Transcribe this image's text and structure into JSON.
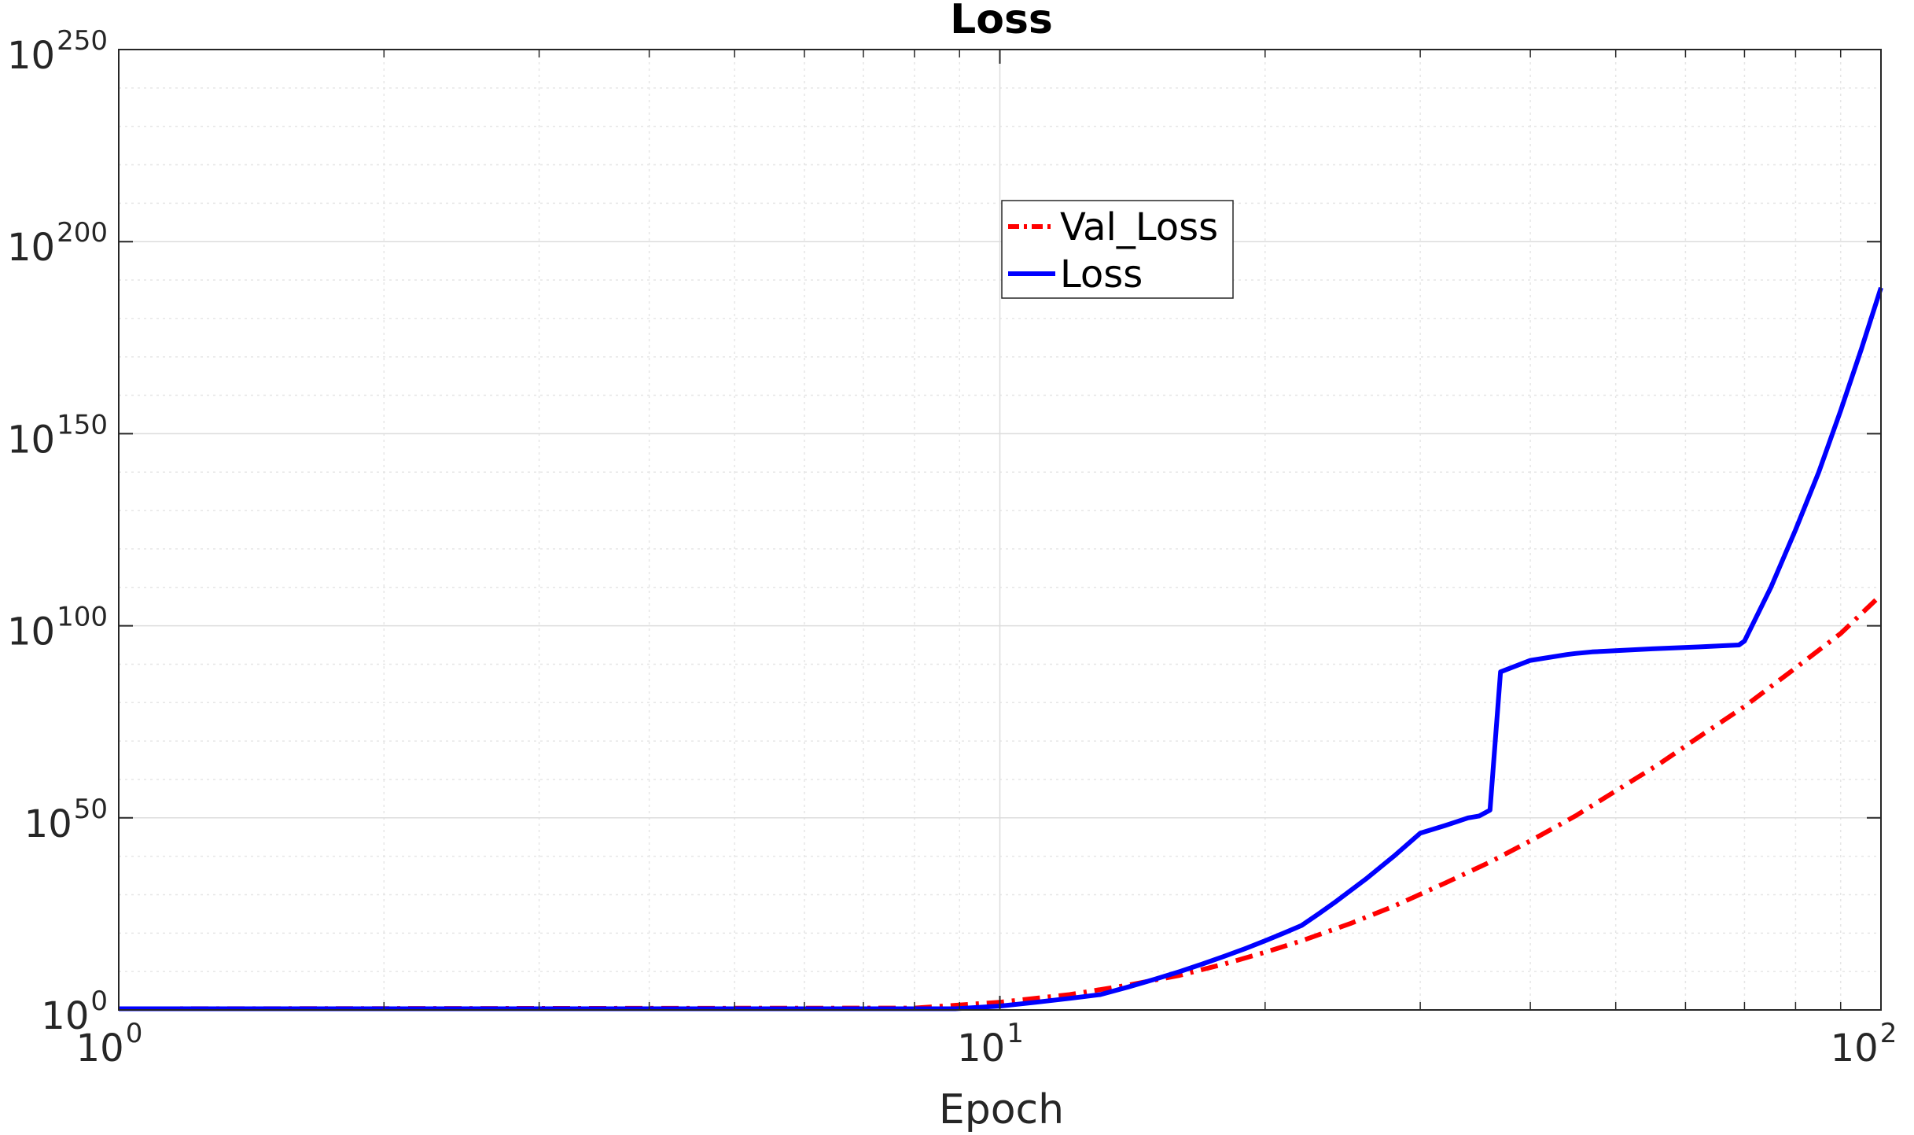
{
  "chart_data": {
    "type": "line",
    "title": "Loss",
    "xlabel": "Epoch",
    "ylabel": "",
    "x_scale": "log",
    "y_scale": "log",
    "xlim": [
      1,
      100
    ],
    "ylim_exponent": [
      0,
      250
    ],
    "x_ticks": [
      {
        "base": "10",
        "exp": "0",
        "value": 1
      },
      {
        "base": "10",
        "exp": "1",
        "value": 10
      },
      {
        "base": "10",
        "exp": "2",
        "value": 100
      }
    ],
    "y_ticks": [
      {
        "base": "10",
        "exp": "0",
        "value": 0
      },
      {
        "base": "10",
        "exp": "50",
        "value": 50
      },
      {
        "base": "10",
        "exp": "100",
        "value": 100
      },
      {
        "base": "10",
        "exp": "150",
        "value": 150
      },
      {
        "base": "10",
        "exp": "200",
        "value": 200
      },
      {
        "base": "10",
        "exp": "250",
        "value": 250
      }
    ],
    "grid": true,
    "legend_position": "top-center",
    "series": [
      {
        "name": "Val_Loss",
        "color": "#ff0000",
        "style": "dash-dot",
        "x": [
          1,
          8,
          10,
          12,
          14,
          16,
          18,
          20,
          22,
          25,
          28,
          32,
          36,
          40,
          45,
          50,
          56,
          63,
          70,
          80,
          90,
          100
        ],
        "log10_y": [
          0.3,
          0.5,
          2,
          4,
          6.5,
          9,
          12,
          15,
          18,
          22.5,
          27,
          33,
          38.5,
          44,
          50.5,
          57,
          64,
          72,
          79,
          89,
          98,
          108
        ]
      },
      {
        "name": "Loss",
        "color": "#0000ff",
        "style": "solid",
        "x": [
          1,
          8.9,
          10,
          11,
          12,
          13,
          14,
          15,
          16,
          17,
          18,
          19,
          20,
          21,
          22,
          23,
          24,
          26,
          28,
          30,
          32,
          33,
          34,
          35,
          36,
          37,
          40,
          44,
          45,
          46,
          47,
          50,
          55,
          62,
          69,
          70,
          75,
          80,
          85,
          90,
          95,
          100
        ],
        "log10_y": [
          0.3,
          0.3,
          1,
          2,
          3,
          4,
          6,
          8,
          10,
          12,
          14,
          16,
          18,
          20,
          22,
          25,
          28,
          34,
          40,
          46,
          48,
          49,
          50,
          50.5,
          52,
          88,
          91,
          92.5,
          92.8,
          93,
          93.2,
          93.5,
          94,
          94.5,
          95,
          96,
          110,
          125,
          140,
          156,
          172,
          188
        ]
      }
    ]
  }
}
